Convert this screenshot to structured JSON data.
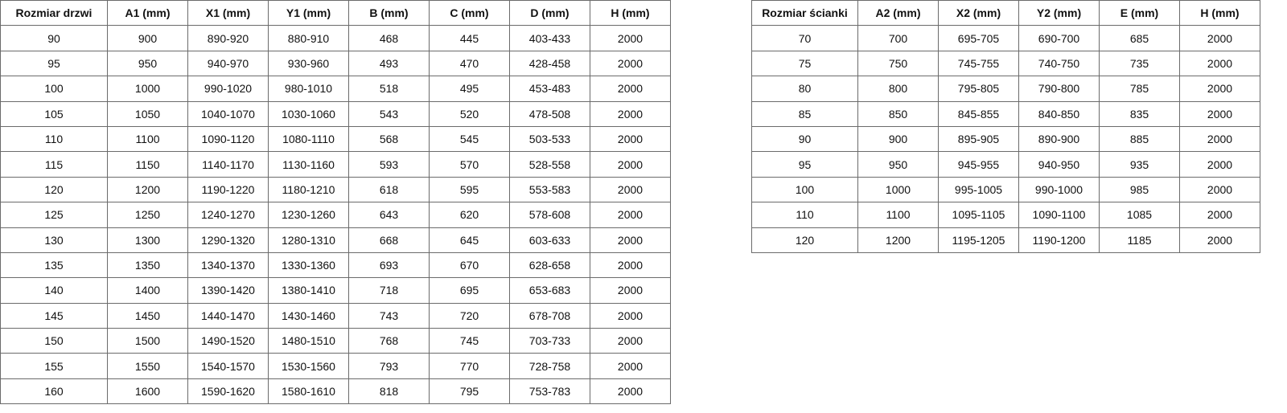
{
  "doors_table": {
    "headers": [
      "Rozmiar drzwi",
      "A1 (mm)",
      "X1 (mm)",
      "Y1 (mm)",
      "B (mm)",
      "C (mm)",
      "D (mm)",
      "H (mm)"
    ],
    "rows": [
      [
        "90",
        "900",
        "890-920",
        "880-910",
        "468",
        "445",
        "403-433",
        "2000"
      ],
      [
        "95",
        "950",
        "940-970",
        "930-960",
        "493",
        "470",
        "428-458",
        "2000"
      ],
      [
        "100",
        "1000",
        "990-1020",
        "980-1010",
        "518",
        "495",
        "453-483",
        "2000"
      ],
      [
        "105",
        "1050",
        "1040-1070",
        "1030-1060",
        "543",
        "520",
        "478-508",
        "2000"
      ],
      [
        "110",
        "1100",
        "1090-1120",
        "1080-1110",
        "568",
        "545",
        "503-533",
        "2000"
      ],
      [
        "115",
        "1150",
        "1140-1170",
        "1130-1160",
        "593",
        "570",
        "528-558",
        "2000"
      ],
      [
        "120",
        "1200",
        "1190-1220",
        "1180-1210",
        "618",
        "595",
        "553-583",
        "2000"
      ],
      [
        "125",
        "1250",
        "1240-1270",
        "1230-1260",
        "643",
        "620",
        "578-608",
        "2000"
      ],
      [
        "130",
        "1300",
        "1290-1320",
        "1280-1310",
        "668",
        "645",
        "603-633",
        "2000"
      ],
      [
        "135",
        "1350",
        "1340-1370",
        "1330-1360",
        "693",
        "670",
        "628-658",
        "2000"
      ],
      [
        "140",
        "1400",
        "1390-1420",
        "1380-1410",
        "718",
        "695",
        "653-683",
        "2000"
      ],
      [
        "145",
        "1450",
        "1440-1470",
        "1430-1460",
        "743",
        "720",
        "678-708",
        "2000"
      ],
      [
        "150",
        "1500",
        "1490-1520",
        "1480-1510",
        "768",
        "745",
        "703-733",
        "2000"
      ],
      [
        "155",
        "1550",
        "1540-1570",
        "1530-1560",
        "793",
        "770",
        "728-758",
        "2000"
      ],
      [
        "160",
        "1600",
        "1590-1620",
        "1580-1610",
        "818",
        "795",
        "753-783",
        "2000"
      ]
    ]
  },
  "walls_table": {
    "headers": [
      "Rozmiar ścianki",
      "A2 (mm)",
      "X2 (mm)",
      "Y2 (mm)",
      "E (mm)",
      "H (mm)"
    ],
    "rows": [
      [
        "70",
        "700",
        "695-705",
        "690-700",
        "685",
        "2000"
      ],
      [
        "75",
        "750",
        "745-755",
        "740-750",
        "735",
        "2000"
      ],
      [
        "80",
        "800",
        "795-805",
        "790-800",
        "785",
        "2000"
      ],
      [
        "85",
        "850",
        "845-855",
        "840-850",
        "835",
        "2000"
      ],
      [
        "90",
        "900",
        "895-905",
        "890-900",
        "885",
        "2000"
      ],
      [
        "95",
        "950",
        "945-955",
        "940-950",
        "935",
        "2000"
      ],
      [
        "100",
        "1000",
        "995-1005",
        "990-1000",
        "985",
        "2000"
      ],
      [
        "110",
        "1100",
        "1095-1105",
        "1090-1100",
        "1085",
        "2000"
      ],
      [
        "120",
        "1200",
        "1195-1205",
        "1190-1200",
        "1185",
        "2000"
      ]
    ]
  }
}
